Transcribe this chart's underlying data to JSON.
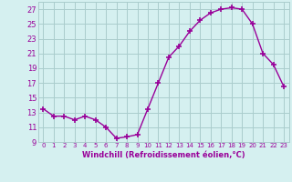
{
  "x": [
    0,
    1,
    2,
    3,
    4,
    5,
    6,
    7,
    8,
    9,
    10,
    11,
    12,
    13,
    14,
    15,
    16,
    17,
    18,
    19,
    20,
    21,
    22,
    23
  ],
  "y": [
    13.5,
    12.5,
    12.5,
    12.0,
    12.5,
    12.0,
    11.0,
    9.5,
    9.7,
    10.0,
    13.5,
    17.0,
    20.5,
    22.0,
    24.0,
    25.5,
    26.5,
    27.0,
    27.2,
    27.0,
    25.0,
    21.0,
    19.5,
    16.5
  ],
  "line_color": "#990099",
  "marker": "+",
  "markersize": 4,
  "markeredgewidth": 1.2,
  "linewidth": 1.0,
  "xlabel": "Windchill (Refroidissement éolien,°C)",
  "xlabel_fontsize": 6.0,
  "bg_color": "#d5f0f0",
  "grid_color": "#aacccc",
  "tick_color": "#990099",
  "label_color": "#990099",
  "ylim": [
    9,
    28
  ],
  "xlim": [
    -0.5,
    23.5
  ],
  "yticks": [
    9,
    11,
    13,
    15,
    17,
    19,
    21,
    23,
    25,
    27
  ],
  "xticks": [
    0,
    1,
    2,
    3,
    4,
    5,
    6,
    7,
    8,
    9,
    10,
    11,
    12,
    13,
    14,
    15,
    16,
    17,
    18,
    19,
    20,
    21,
    22,
    23
  ],
  "ytick_fontsize": 6.0,
  "xtick_fontsize": 5.0
}
